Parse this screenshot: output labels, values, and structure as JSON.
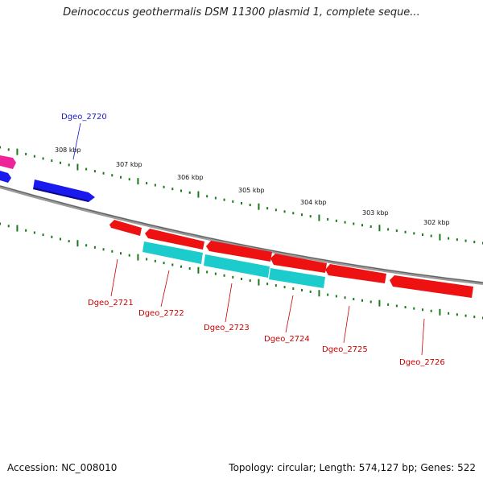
{
  "title": "Deinococcus geothermalis DSM 11300 plasmid 1, complete seque...",
  "footer": {
    "accession": "Accession: NC_008010",
    "summary": "Topology: circular; Length: 574,127 bp; Genes: 522"
  },
  "colors": {
    "backbone": "#808080",
    "tick": "#1a7a1a",
    "forward_gene": "#1a1aee",
    "reverse_gene": "#ee1111",
    "cyan_gene": "#1ccccc",
    "pink_gene": "#ee2299",
    "label_blue": "#1a1acc",
    "label_red": "#cc0000"
  },
  "ruler": {
    "labels": [
      "308 kbp",
      "307 kbp",
      "306 kbp",
      "305 kbp",
      "304 kbp",
      "303 kbp",
      "302 kbp"
    ]
  },
  "genes": [
    {
      "id": "Dgeo_2720",
      "strand": "forward",
      "color": "blue"
    },
    {
      "id": "Dgeo_2721",
      "strand": "reverse",
      "color": "red"
    },
    {
      "id": "Dgeo_2722",
      "strand": "reverse",
      "color": "red"
    },
    {
      "id": "Dgeo_2723",
      "strand": "reverse",
      "color": "red"
    },
    {
      "id": "Dgeo_2724",
      "strand": "reverse",
      "color": "red"
    },
    {
      "id": "Dgeo_2725",
      "strand": "reverse",
      "color": "red"
    },
    {
      "id": "Dgeo_2726",
      "strand": "reverse",
      "color": "red"
    }
  ]
}
